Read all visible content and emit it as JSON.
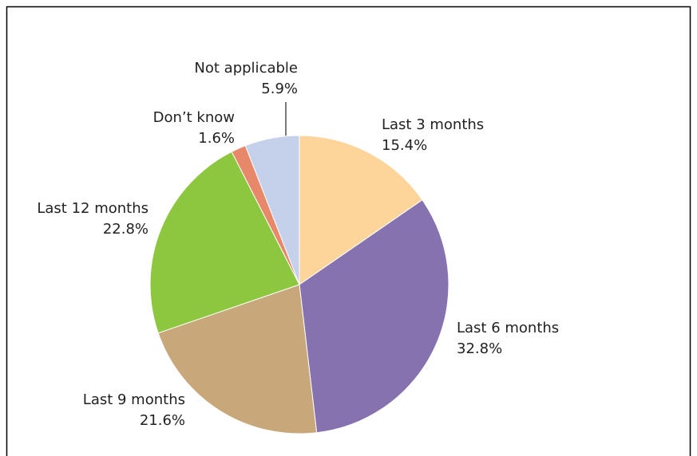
{
  "chart_data": {
    "type": "pie",
    "categories": [
      "Last 3 months",
      "Last 6 months",
      "Last 9 months",
      "Last 12 months",
      "Don’t know",
      "Not applicable"
    ],
    "values": [
      15.4,
      32.8,
      21.6,
      22.8,
      1.6,
      5.9
    ],
    "value_labels": [
      "15.4%",
      "32.8%",
      "21.6%",
      "22.8%",
      "1.6%",
      "5.9%"
    ],
    "colors": [
      "#fdd49a",
      "#8572ae",
      "#c8a77b",
      "#8dc63f",
      "#e8886a",
      "#c5d0ea"
    ]
  }
}
